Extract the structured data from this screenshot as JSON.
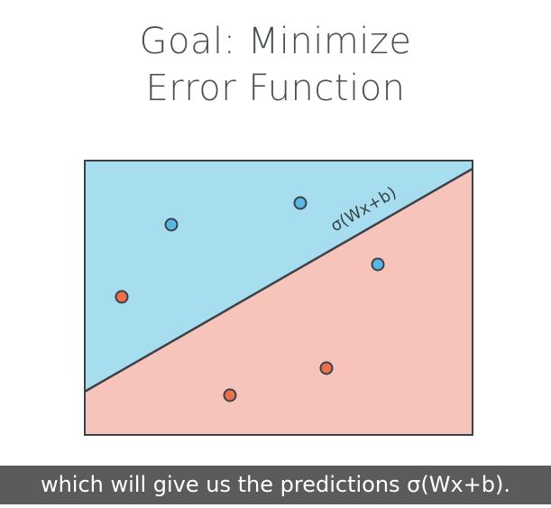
{
  "slide": {
    "title_line1": "Goal: Minimize",
    "title_line2": "Error Function"
  },
  "diagram": {
    "boundary_label": "σ(Wx+b)",
    "colors": {
      "positive_region": "#a6def0",
      "negative_region": "#f6c4bb",
      "positive_point": "#56b8e3",
      "negative_point": "#ed6f4c",
      "outline": "#3c4148"
    },
    "points": [
      {
        "class": "positive",
        "name": "blue-point-1"
      },
      {
        "class": "positive",
        "name": "blue-point-2"
      },
      {
        "class": "positive",
        "name": "blue-point-3"
      },
      {
        "class": "negative",
        "name": "red-point-1"
      },
      {
        "class": "negative",
        "name": "red-point-2"
      },
      {
        "class": "negative",
        "name": "red-point-3"
      }
    ]
  },
  "subtitle": {
    "text": "which will give us the predictions σ(Wx+b)."
  }
}
